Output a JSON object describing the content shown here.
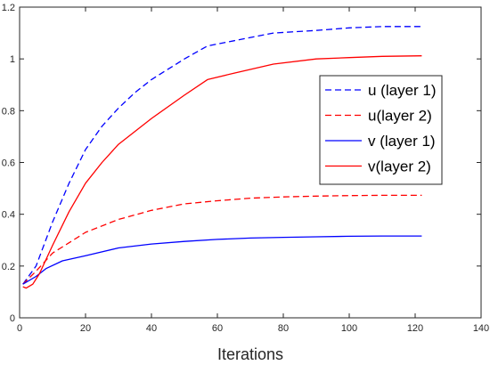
{
  "chart_data": {
    "type": "line",
    "title": "",
    "xlabel": "Iterations",
    "ylabel": "",
    "xlim": [
      0,
      140
    ],
    "ylim": [
      0,
      1.2
    ],
    "xticks": [
      "0",
      "20",
      "40",
      "60",
      "80",
      "100",
      "120",
      "140"
    ],
    "yticks": [
      "0",
      "0.2",
      "0.4",
      "0.6",
      "0.8",
      "1",
      "1.2"
    ],
    "grid": false,
    "legend_position": "right",
    "series": [
      {
        "name": "u (layer 1)",
        "color": "#0000ff",
        "style": "dashed",
        "x": [
          1,
          5,
          10,
          15,
          20,
          25,
          30,
          35,
          40,
          50,
          57,
          65,
          77,
          90,
          100,
          110,
          122
        ],
        "y": [
          0.13,
          0.2,
          0.37,
          0.52,
          0.65,
          0.74,
          0.81,
          0.87,
          0.92,
          1.0,
          1.05,
          1.07,
          1.1,
          1.11,
          1.12,
          1.125,
          1.125
        ]
      },
      {
        "name": "u(layer 2)",
        "color": "#ff0000",
        "style": "dashed",
        "x": [
          1,
          5,
          10,
          15,
          20,
          30,
          40,
          50,
          60,
          70,
          80,
          90,
          100,
          110,
          122
        ],
        "y": [
          0.13,
          0.18,
          0.25,
          0.29,
          0.33,
          0.38,
          0.415,
          0.44,
          0.452,
          0.462,
          0.467,
          0.47,
          0.472,
          0.473,
          0.473
        ]
      },
      {
        "name": "v (layer 1)",
        "color": "#0000ff",
        "style": "solid",
        "x": [
          1,
          5,
          8,
          13,
          20,
          30,
          40,
          50,
          60,
          70,
          80,
          90,
          100,
          110,
          122
        ],
        "y": [
          0.13,
          0.16,
          0.19,
          0.22,
          0.24,
          0.27,
          0.285,
          0.295,
          0.303,
          0.308,
          0.311,
          0.313,
          0.315,
          0.316,
          0.316
        ]
      },
      {
        "name": "v(layer 2)",
        "color": "#ff0000",
        "style": "solid",
        "x": [
          1,
          2,
          4,
          6,
          10,
          15,
          20,
          25,
          30,
          40,
          50,
          57,
          65,
          77,
          90,
          100,
          110,
          122
        ],
        "y": [
          0.12,
          0.115,
          0.13,
          0.17,
          0.28,
          0.41,
          0.52,
          0.6,
          0.67,
          0.77,
          0.86,
          0.92,
          0.945,
          0.98,
          1.0,
          1.005,
          1.01,
          1.012
        ]
      }
    ]
  }
}
